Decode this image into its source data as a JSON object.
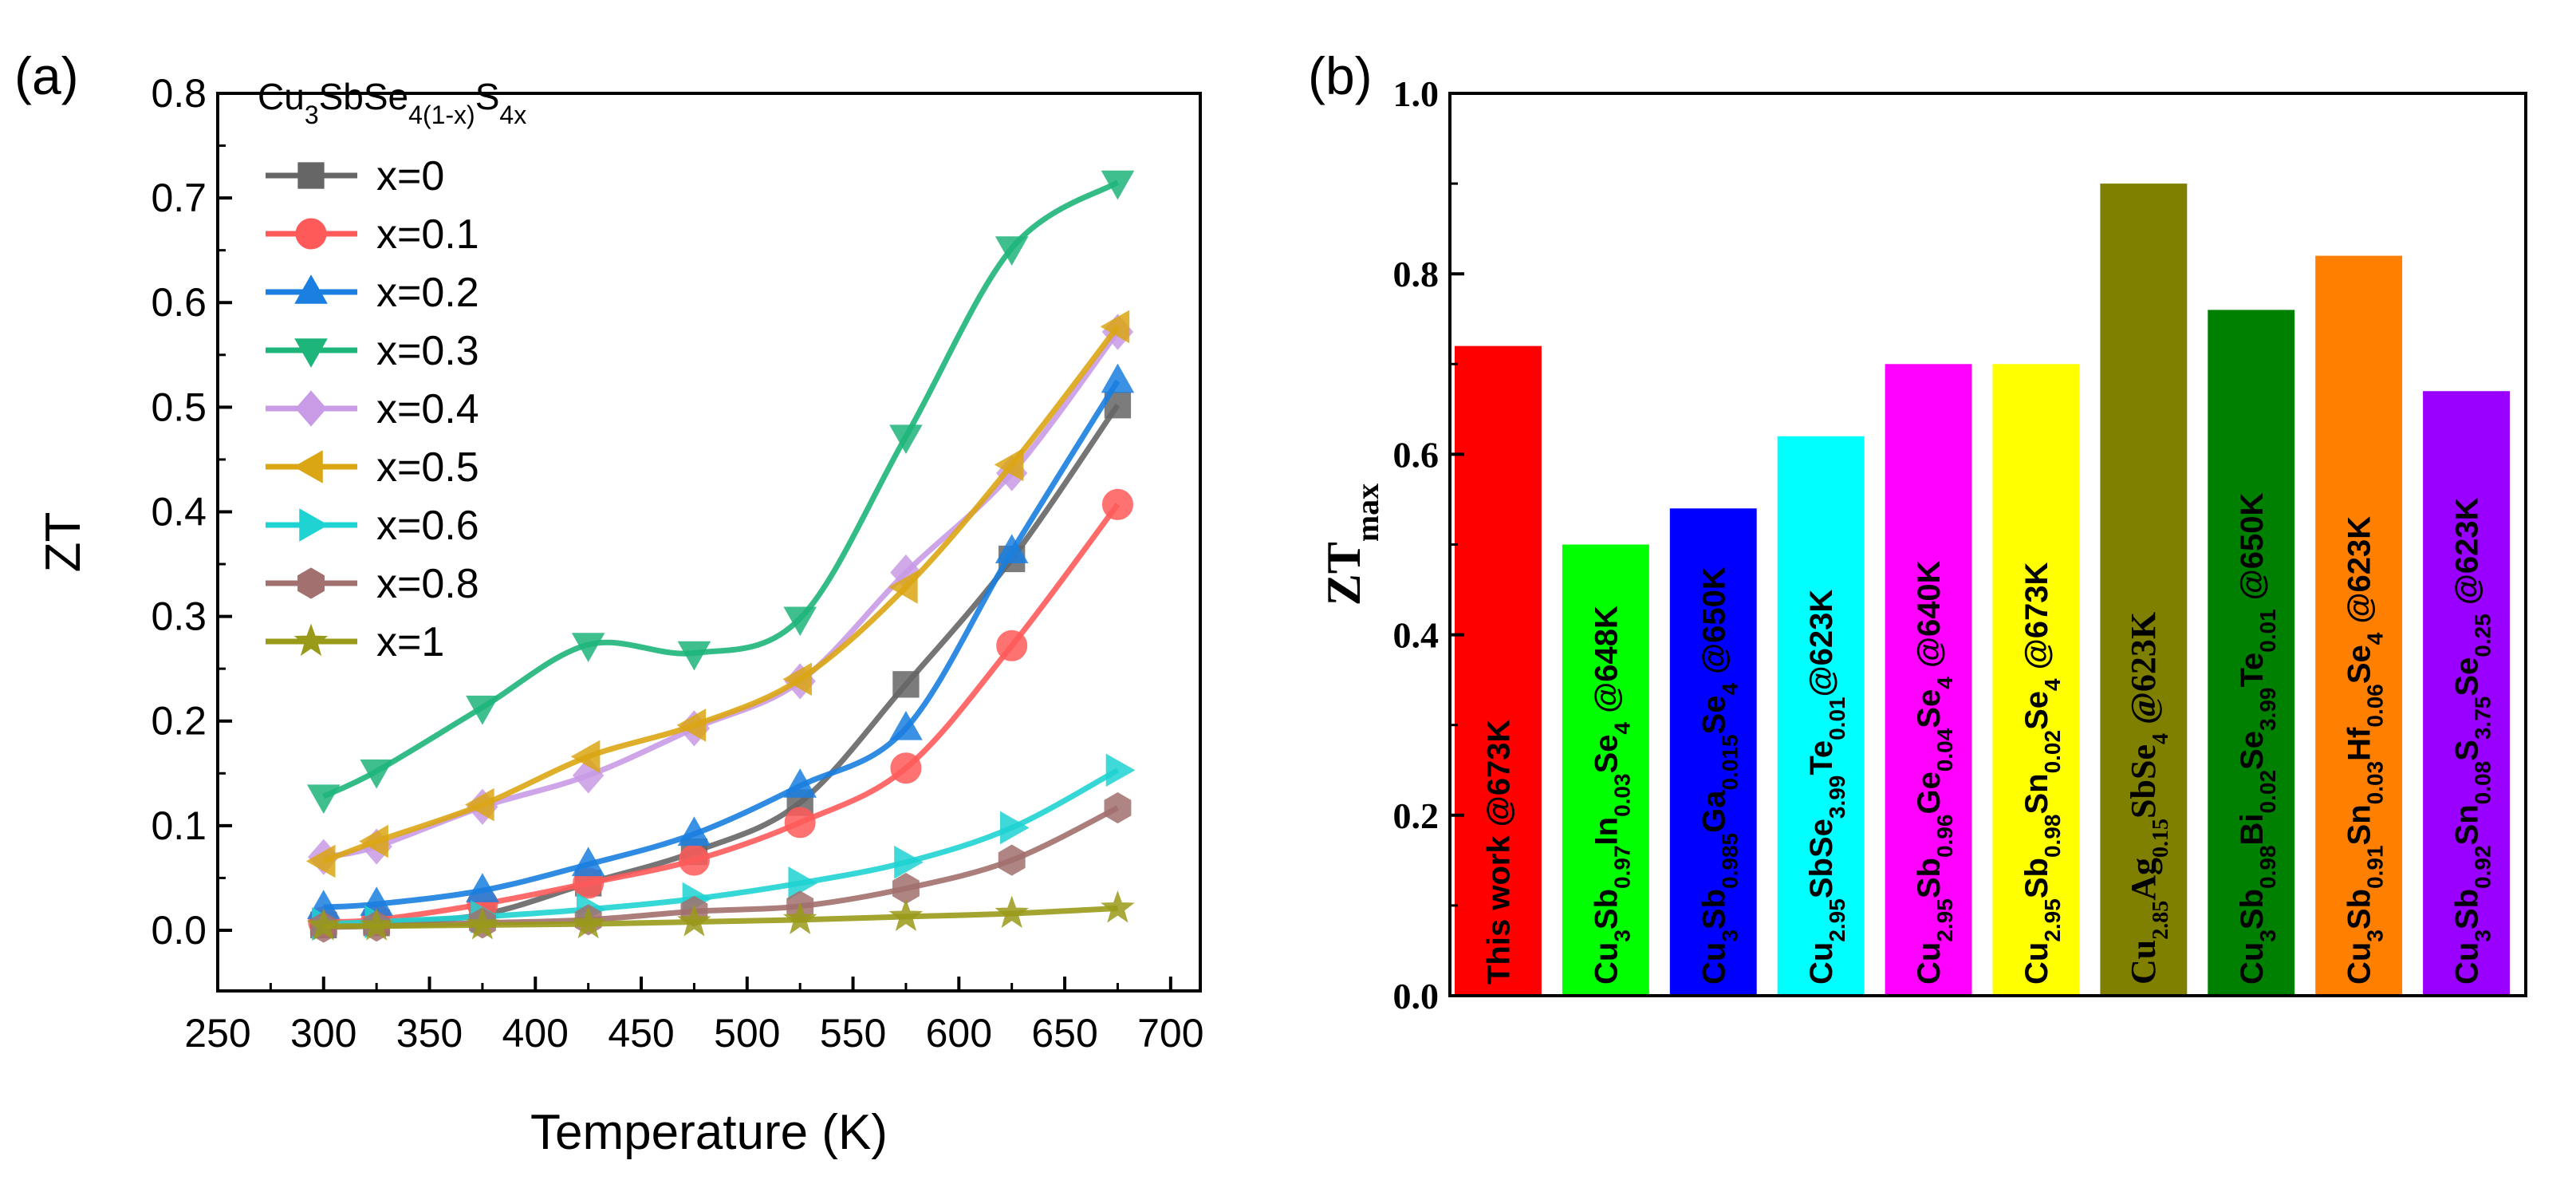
{
  "chart_data": [
    {
      "type": "line",
      "panel_label": "(a)",
      "xlabel": "Temperature (K)",
      "ylabel": "ZT",
      "xlim": [
        250,
        714
      ],
      "ylim": [
        -0.058,
        0.8
      ],
      "xticks": [
        250,
        300,
        350,
        400,
        450,
        500,
        550,
        600,
        650,
        700
      ],
      "yticks": [
        0.0,
        0.1,
        0.2,
        0.3,
        0.4,
        0.5,
        0.6,
        0.7,
        0.8
      ],
      "legend_title": "Cu_{3}SbSe_{4(1-x)}S_{4x}",
      "legend_placement": "top-left",
      "x": [
        300,
        325,
        375,
        425,
        475,
        525,
        575,
        625,
        675
      ],
      "series": [
        {
          "name": "x=0",
          "color": "#666666",
          "marker": "square",
          "values": [
            0.005,
            0.007,
            0.015,
            0.045,
            0.075,
            0.122,
            0.235,
            0.355,
            0.502
          ]
        },
        {
          "name": "x=0.1",
          "color": "#ff5a5a",
          "marker": "circle",
          "values": [
            0.008,
            0.01,
            0.025,
            0.045,
            0.067,
            0.103,
            0.155,
            0.272,
            0.407
          ]
        },
        {
          "name": "x=0.2",
          "color": "#1a7fe0",
          "marker": "triangle-up",
          "values": [
            0.022,
            0.025,
            0.038,
            0.063,
            0.092,
            0.138,
            0.193,
            0.362,
            0.525
          ]
        },
        {
          "name": "x=0.3",
          "color": "#1eb57a",
          "marker": "triangle-down",
          "values": [
            0.128,
            0.152,
            0.213,
            0.273,
            0.265,
            0.298,
            0.472,
            0.652,
            0.715
          ]
        },
        {
          "name": "x=0.4",
          "color": "#c99be6",
          "marker": "diamond",
          "values": [
            0.07,
            0.08,
            0.118,
            0.148,
            0.193,
            0.238,
            0.342,
            0.437,
            0.572
          ]
        },
        {
          "name": "x=0.5",
          "color": "#dba614",
          "marker": "triangle-left",
          "values": [
            0.066,
            0.085,
            0.12,
            0.166,
            0.196,
            0.24,
            0.328,
            0.445,
            0.577
          ]
        },
        {
          "name": "x=0.6",
          "color": "#1fd3d3",
          "marker": "triangle-right",
          "values": [
            0.006,
            0.008,
            0.013,
            0.02,
            0.03,
            0.045,
            0.065,
            0.098,
            0.153
          ]
        },
        {
          "name": "x=0.8",
          "color": "#a2706e",
          "marker": "hexagon",
          "values": [
            0.003,
            0.004,
            0.007,
            0.01,
            0.018,
            0.023,
            0.04,
            0.067,
            0.117
          ]
        },
        {
          "name": "x=1",
          "color": "#9a9a1a",
          "marker": "star",
          "values": [
            0.004,
            0.004,
            0.005,
            0.006,
            0.008,
            0.01,
            0.013,
            0.016,
            0.021
          ]
        }
      ]
    },
    {
      "type": "bar",
      "panel_label": "(b)",
      "ylabel": "ZT_{max}",
      "ylim": [
        0,
        1.0
      ],
      "yticks": [
        0.0,
        0.2,
        0.4,
        0.6,
        0.8,
        1.0
      ],
      "categories": [
        "This work @673K",
        "Cu_{3}Sb_{0.97}In_{0.03}Se_{4} @648K",
        "Cu_{3}Sb_{0.985}Ga_{0.015}Se_{4} @650K",
        "Cu_{2.95}SbSe_{3.99}Te_{0.01}@623K",
        "Cu_{2.95}Sb_{0.96}Ge_{0.04}Se_{4} @640K",
        "Cu_{2.95}Sb_{0.98}Sn_{0.02}Se_{4} @673K",
        "Cu_{2.85}Ag_{0.15}SbSe_{4} @623K",
        "Cu_{3}Sb_{0.98}Bi_{0.02}Se_{3.99}Te_{0.01} @650K",
        "Cu_{3}Sb_{0.91}Sn_{0.03}Hf_{0.06}Se_{4} @623K",
        "Cu_{3}Sb_{0.92}Sn_{0.08}S_{3.75}Se_{0.25} @623K"
      ],
      "values": [
        0.72,
        0.5,
        0.54,
        0.62,
        0.7,
        0.7,
        0.9,
        0.76,
        0.82,
        0.67
      ],
      "colors": [
        "#ff0000",
        "#00ff00",
        "#0000ff",
        "#00ffff",
        "#ff00ff",
        "#ffff00",
        "#808000",
        "#008000",
        "#ff8000",
        "#9900ff"
      ]
    }
  ]
}
